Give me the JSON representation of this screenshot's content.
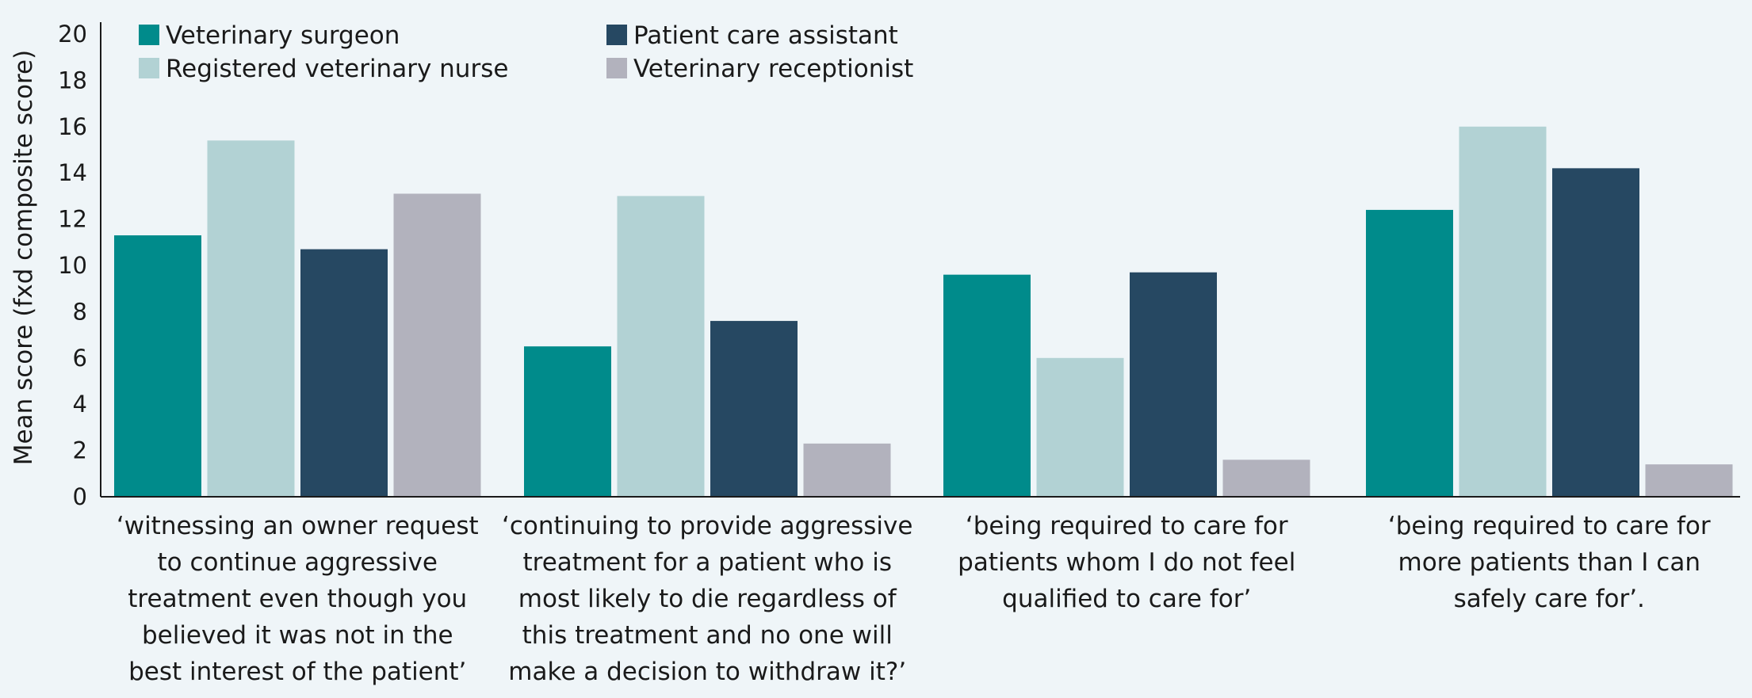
{
  "chart_data": {
    "type": "bar",
    "title": "",
    "ylabel": "Mean score (fxd composite score)",
    "xlabel": "",
    "ylim": [
      0,
      20
    ],
    "yticks": [
      0,
      2,
      4,
      6,
      8,
      10,
      12,
      14,
      16,
      18,
      20
    ],
    "grid": false,
    "legend_position": "top-left",
    "categories": [
      [
        "‘witnessing an owner request",
        "to continue aggressive",
        "treatment even though you",
        "believed it was not in the",
        "best interest of the patient’"
      ],
      [
        "‘continuing to provide aggressive",
        "treatment for a patient who is",
        "most likely to die regardless of",
        "this treatment and no one will",
        "make a decision to withdraw it?’"
      ],
      [
        "‘being required to care for",
        "patients whom I do not feel",
        "qualified to care for’"
      ],
      [
        "‘being required to care for",
        "more patients than I can",
        "safely care for’."
      ]
    ],
    "series": [
      {
        "name": "Veterinary surgeon",
        "color": "#008b8b",
        "values": [
          11.3,
          6.5,
          9.6,
          12.4
        ]
      },
      {
        "name": "Registered veterinary nurse",
        "color": "#b2d2d4",
        "values": [
          15.4,
          13.0,
          6.0,
          16.0
        ]
      },
      {
        "name": "Patient care assistant",
        "color": "#264862",
        "values": [
          10.7,
          7.6,
          9.7,
          14.2
        ]
      },
      {
        "name": "Veterinary receptionist",
        "color": "#b2b2bd",
        "values": [
          13.1,
          2.3,
          1.6,
          1.4
        ]
      }
    ]
  }
}
